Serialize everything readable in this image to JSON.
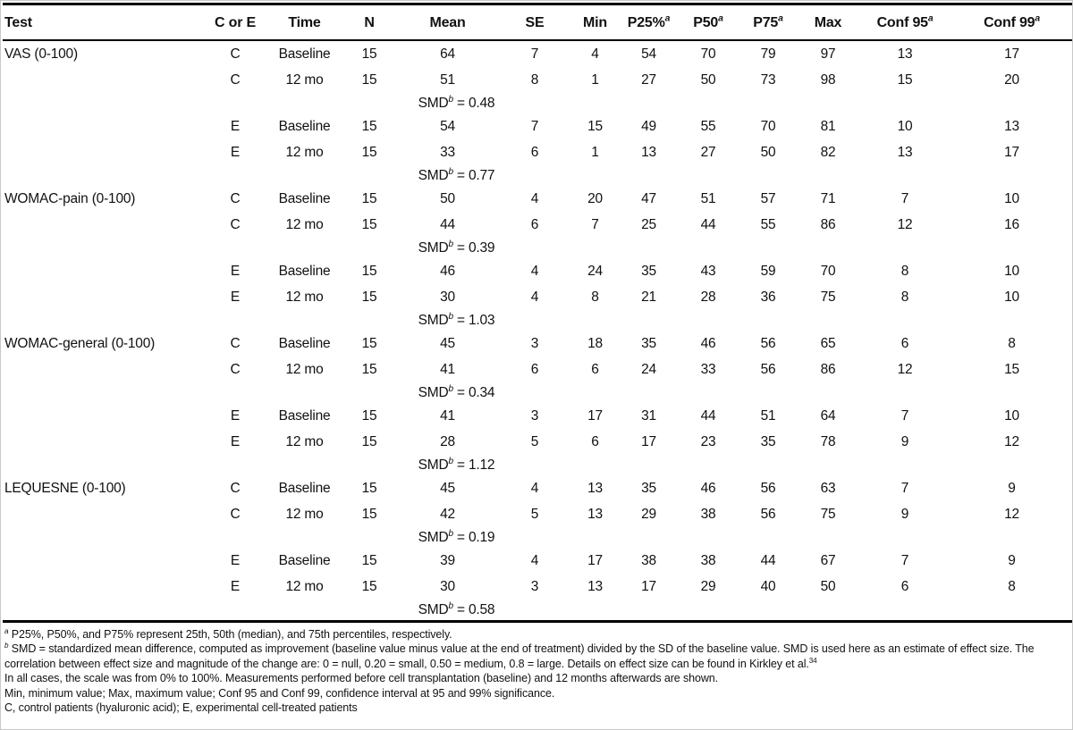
{
  "table": {
    "smd_label": "SMD",
    "smd_sup": "b",
    "columns": [
      {
        "label": "Test",
        "sup": ""
      },
      {
        "label": "C or E",
        "sup": ""
      },
      {
        "label": "Time",
        "sup": ""
      },
      {
        "label": "N",
        "sup": ""
      },
      {
        "label": "Mean",
        "sup": ""
      },
      {
        "label": "SE",
        "sup": ""
      },
      {
        "label": "Min",
        "sup": ""
      },
      {
        "label": "P25%",
        "sup": "a"
      },
      {
        "label": "P50",
        "sup": "a"
      },
      {
        "label": "P75",
        "sup": "a"
      },
      {
        "label": "Max",
        "sup": ""
      },
      {
        "label": "Conf 95",
        "sup": "a"
      },
      {
        "label": "Conf 99",
        "sup": "a"
      }
    ],
    "groups": [
      {
        "test": "VAS (0-100)",
        "rows": [
          {
            "arm": "C",
            "time": "Baseline",
            "n": "15",
            "mean": "64",
            "se": "7",
            "min": "4",
            "p25": "54",
            "p50": "70",
            "p75": "79",
            "max": "97",
            "conf95": "13",
            "conf99": "17"
          },
          {
            "arm": "C",
            "time": "12 mo",
            "n": "15",
            "mean": "51",
            "se": "8",
            "min": "1",
            "p25": "27",
            "p50": "50",
            "p75": "73",
            "max": "98",
            "conf95": "15",
            "conf99": "20"
          },
          {
            "smd": "0.48"
          },
          {
            "arm": "E",
            "time": "Baseline",
            "n": "15",
            "mean": "54",
            "se": "7",
            "min": "15",
            "p25": "49",
            "p50": "55",
            "p75": "70",
            "max": "81",
            "conf95": "10",
            "conf99": "13"
          },
          {
            "arm": "E",
            "time": "12 mo",
            "n": "15",
            "mean": "33",
            "se": "6",
            "min": "1",
            "p25": "13",
            "p50": "27",
            "p75": "50",
            "max": "82",
            "conf95": "13",
            "conf99": "17"
          },
          {
            "smd": "0.77"
          }
        ]
      },
      {
        "test": "WOMAC-pain (0-100)",
        "rows": [
          {
            "arm": "C",
            "time": "Baseline",
            "n": "15",
            "mean": "50",
            "se": "4",
            "min": "20",
            "p25": "47",
            "p50": "51",
            "p75": "57",
            "max": "71",
            "conf95": "7",
            "conf99": "10"
          },
          {
            "arm": "C",
            "time": "12 mo",
            "n": "15",
            "mean": "44",
            "se": "6",
            "min": "7",
            "p25": "25",
            "p50": "44",
            "p75": "55",
            "max": "86",
            "conf95": "12",
            "conf99": "16"
          },
          {
            "smd": "0.39"
          },
          {
            "arm": "E",
            "time": "Baseline",
            "n": "15",
            "mean": "46",
            "se": "4",
            "min": "24",
            "p25": "35",
            "p50": "43",
            "p75": "59",
            "max": "70",
            "conf95": "8",
            "conf99": "10"
          },
          {
            "arm": "E",
            "time": "12 mo",
            "n": "15",
            "mean": "30",
            "se": "4",
            "min": "8",
            "p25": "21",
            "p50": "28",
            "p75": "36",
            "max": "75",
            "conf95": "8",
            "conf99": "10"
          },
          {
            "smd": "1.03"
          }
        ]
      },
      {
        "test": "WOMAC-general (0-100)",
        "rows": [
          {
            "arm": "C",
            "time": "Baseline",
            "n": "15",
            "mean": "45",
            "se": "3",
            "min": "18",
            "p25": "35",
            "p50": "46",
            "p75": "56",
            "max": "65",
            "conf95": "6",
            "conf99": "8"
          },
          {
            "arm": "C",
            "time": "12 mo",
            "n": "15",
            "mean": "41",
            "se": "6",
            "min": "6",
            "p25": "24",
            "p50": "33",
            "p75": "56",
            "max": "86",
            "conf95": "12",
            "conf99": "15"
          },
          {
            "smd": "0.34"
          },
          {
            "arm": "E",
            "time": "Baseline",
            "n": "15",
            "mean": "41",
            "se": "3",
            "min": "17",
            "p25": "31",
            "p50": "44",
            "p75": "51",
            "max": "64",
            "conf95": "7",
            "conf99": "10"
          },
          {
            "arm": "E",
            "time": "12 mo",
            "n": "15",
            "mean": "28",
            "se": "5",
            "min": "6",
            "p25": "17",
            "p50": "23",
            "p75": "35",
            "max": "78",
            "conf95": "9",
            "conf99": "12"
          },
          {
            "smd": "1.12"
          }
        ]
      },
      {
        "test": "LEQUESNE (0-100)",
        "rows": [
          {
            "arm": "C",
            "time": "Baseline",
            "n": "15",
            "mean": "45",
            "se": "4",
            "min": "13",
            "p25": "35",
            "p50": "46",
            "p75": "56",
            "max": "63",
            "conf95": "7",
            "conf99": "9"
          },
          {
            "arm": "C",
            "time": "12 mo",
            "n": "15",
            "mean": "42",
            "se": "5",
            "min": "13",
            "p25": "29",
            "p50": "38",
            "p75": "56",
            "max": "75",
            "conf95": "9",
            "conf99": "12"
          },
          {
            "smd": "0.19"
          },
          {
            "arm": "E",
            "time": "Baseline",
            "n": "15",
            "mean": "39",
            "se": "4",
            "min": "17",
            "p25": "38",
            "p50": "38",
            "p75": "44",
            "max": "67",
            "conf95": "7",
            "conf99": "9"
          },
          {
            "arm": "E",
            "time": "12 mo",
            "n": "15",
            "mean": "30",
            "se": "3",
            "min": "13",
            "p25": "17",
            "p50": "29",
            "p75": "40",
            "max": "50",
            "conf95": "6",
            "conf99": "8"
          },
          {
            "smd": "0.58"
          }
        ]
      }
    ]
  },
  "footnotes": [
    {
      "marker": "a",
      "text": "P25%, P50%, and P75% represent 25th, 50th (median), and 75th percentiles, respectively.",
      "citation": ""
    },
    {
      "marker": "b",
      "text": "SMD = standardized mean difference, computed as improvement (baseline value minus value at the end of treatment) divided by the SD of the baseline value. SMD is used here as an estimate of effect size. The correlation between effect size and magnitude of the change are: 0 = null, 0.20 = small, 0.50 = medium, 0.8 = large. Details on effect size can be found in Kirkley et al.",
      "citation": "34"
    },
    {
      "marker": "",
      "text": "In all cases, the scale was from 0% to 100%. Measurements performed before cell transplantation (baseline) and 12 months afterwards are shown.",
      "citation": ""
    },
    {
      "marker": "",
      "text": "Min, minimum value; Max, maximum value; Conf 95 and Conf 99, confidence interval at 95 and 99% significance.",
      "citation": ""
    },
    {
      "marker": "",
      "text": "C, control patients (hyaluronic acid); E, experimental cell-treated patients",
      "citation": ""
    }
  ]
}
